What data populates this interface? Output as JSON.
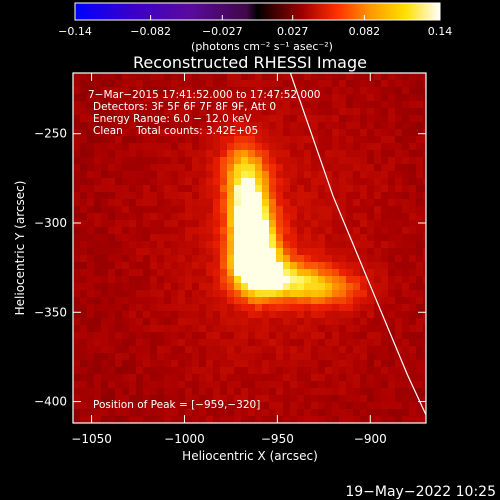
{
  "colorbar": {
    "ticks": [
      "-0.14",
      "-0.082",
      "-0.027",
      "0.027",
      "0.082",
      "0.14"
    ],
    "tick_values": [
      -0.14,
      -0.082,
      -0.027,
      0.027,
      0.082,
      0.14
    ],
    "range": [
      -0.14,
      0.14
    ],
    "colors_neg": [
      "#0000ff",
      "#3a00c8",
      "#5a0aa0",
      "#400848"
    ],
    "colors_pos": [
      "#2a0000",
      "#a00000",
      "#ff3000",
      "#ff9a00",
      "#ffe000",
      "#ffffff"
    ]
  },
  "units": "(photons cm⁻² s⁻¹ asec⁻²)",
  "chart_data": {
    "type": "heatmap",
    "title": "Reconstructed RHESSI Image",
    "xlabel": "Heliocentric X (arcsec)",
    "ylabel": "Heliocentric Y (arcsec)",
    "xlim": [
      -1060,
      -870
    ],
    "ylim": [
      -412,
      -216
    ],
    "x_ticks": [
      -1050,
      -1000,
      -950,
      -900
    ],
    "y_ticks": [
      -250,
      -300,
      -350,
      -400
    ],
    "x_tick_labels": [
      "−1050",
      "−1000",
      "−950",
      "−900"
    ],
    "y_tick_labels": [
      "−250",
      "−300",
      "−350",
      "−400"
    ],
    "annotations": [
      "7−Mar−2015 17:41:52.000 to 17:47:52.000",
      "Detectors: 3F 5F 6F 7F 8F 9F, Att 0",
      "Energy Range: 6.0 − 12.0 keV",
      "Clean    Total counts: 3.42E+05"
    ],
    "peak_label": "Position of Peak = [−959,−320]",
    "peak": [
      -959,
      -320
    ],
    "limb": [
      [
        -943,
        -216
      ],
      [
        -920,
        -285
      ],
      [
        -898,
        -340
      ],
      [
        -880,
        -385
      ],
      [
        -868,
        -412
      ]
    ],
    "sources": [
      {
        "x": -962,
        "y": -320,
        "sx": 9,
        "sy": 13,
        "amp": 1.0
      },
      {
        "x": -965,
        "y": -295,
        "sx": 8,
        "sy": 14,
        "amp": 0.8
      },
      {
        "x": -968,
        "y": -270,
        "sx": 9,
        "sy": 12,
        "amp": 0.45
      },
      {
        "x": -945,
        "y": -332,
        "sx": 16,
        "sy": 8,
        "amp": 0.55
      },
      {
        "x": -920,
        "y": -338,
        "sx": 14,
        "sy": 7,
        "amp": 0.3
      }
    ]
  },
  "footer": {
    "date": "19−May−2022 10:25"
  }
}
